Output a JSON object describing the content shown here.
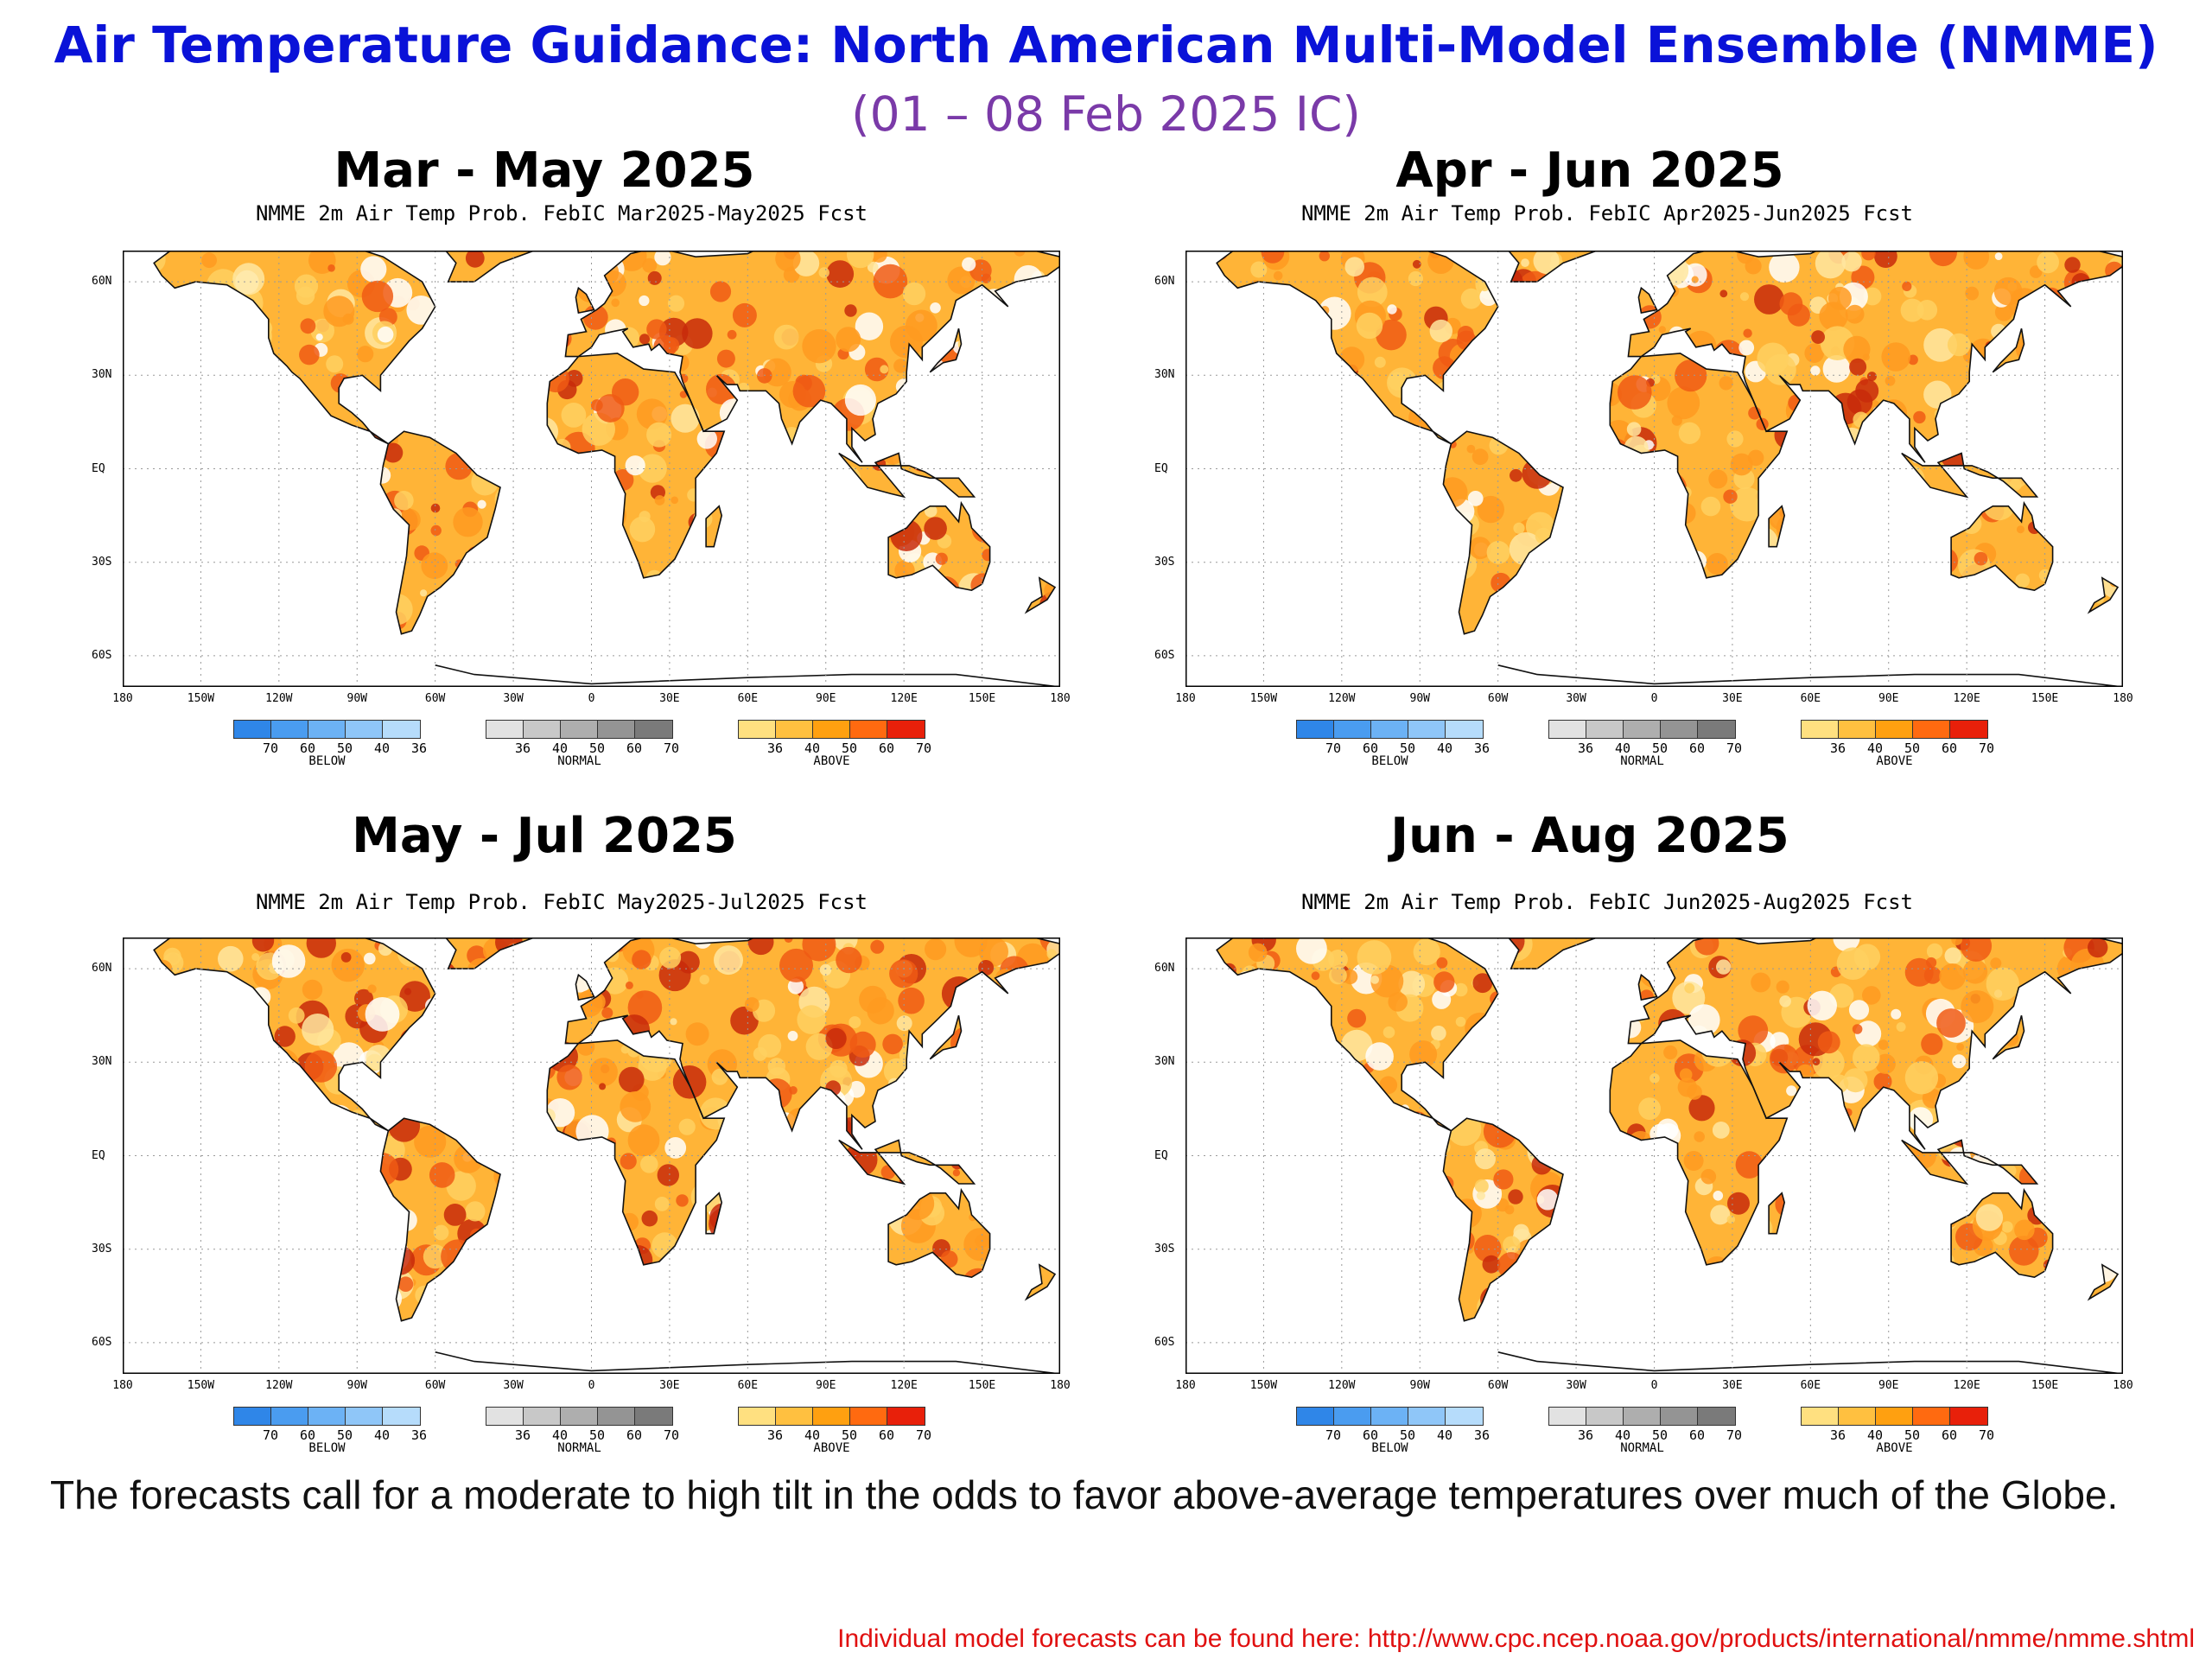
{
  "slide": {
    "title": "Air Temperature Guidance:  North American Multi-Model Ensemble (NMME)",
    "subtitle": "(01 – 08 Feb 2025 IC)",
    "summary": "The forecasts call for a moderate to high tilt in the odds to favor above-average temperatures over much of the Globe.",
    "footer": "Individual model forecasts can be found here: http://www.cpc.ncep.noaa.gov/products/international/nmme/nmme.shtml"
  },
  "map_axes": {
    "lat_labels": [
      "60N",
      "30N",
      "EQ",
      "30S",
      "60S"
    ],
    "lon_labels": [
      "180",
      "150W",
      "120W",
      "90W",
      "60W",
      "30W",
      "0",
      "30E",
      "60E",
      "90E",
      "120E",
      "150E",
      "180"
    ]
  },
  "legend": {
    "below": {
      "label": "BELOW",
      "ticks": [
        "70",
        "60",
        "50",
        "40",
        "36"
      ],
      "colors": [
        "#2f86e8",
        "#4a9cf0",
        "#6cb2f5",
        "#8fc6f8",
        "#b6dcfb"
      ]
    },
    "normal": {
      "label": "NORMAL",
      "ticks": [
        "36",
        "40",
        "50",
        "60",
        "70"
      ],
      "colors": [
        "#e2e2e2",
        "#c8c8c8",
        "#aeaeae",
        "#949494",
        "#7a7a7a"
      ]
    },
    "above": {
      "label": "ABOVE",
      "ticks": [
        "36",
        "40",
        "50",
        "60",
        "70"
      ],
      "colors": [
        "#ffe080",
        "#ffc040",
        "#ffa010",
        "#ff6a10",
        "#e8200a"
      ]
    }
  },
  "panels": [
    {
      "season": "Mar - May 2025",
      "map_title": "NMME 2m Air Temp Prob. FebIC   Mar2025-May2025 Fcst"
    },
    {
      "season": "Apr - Jun 2025",
      "map_title": "NMME 2m Air Temp Prob. FebIC   Apr2025-Jun2025 Fcst"
    },
    {
      "season": "May - Jul 2025",
      "map_title": "NMME 2m Air Temp Prob. FebIC   May2025-Jul2025 Fcst"
    },
    {
      "season": "Jun - Aug 2025",
      "map_title": "NMME 2m Air Temp Prob. FebIC   Jun2025-Aug2025 Fcst"
    }
  ],
  "colors": {
    "title": "#0a12d8",
    "subtitle": "#7a3aa8",
    "footer": "#e01010",
    "land_base": "#ffb437",
    "land_hot": "#f05a14",
    "land_hottest": "#c82a0a"
  }
}
